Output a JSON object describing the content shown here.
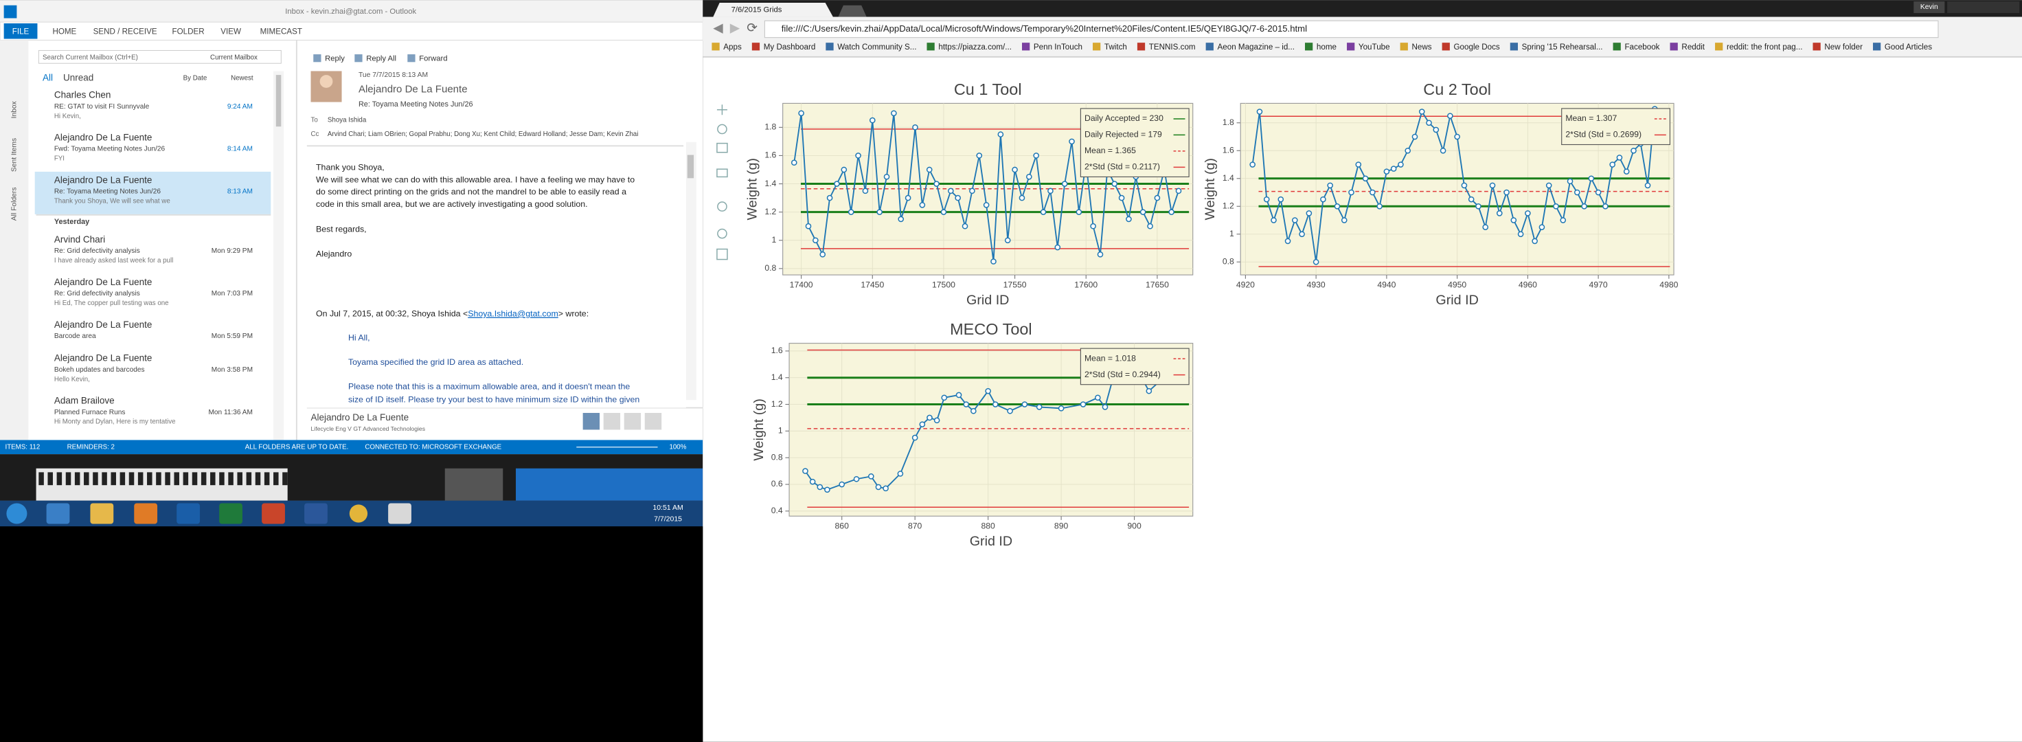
{
  "outlook": {
    "window_title": "Inbox - kevin.zhai@gtat.com - Outlook",
    "ribbon_tabs": [
      "FILE",
      "HOME",
      "SEND / RECEIVE",
      "FOLDER",
      "VIEW",
      "MIMECAST"
    ],
    "search_placeholder": "Search Current Mailbox (Ctrl+E)",
    "search_scope": "Current Mailbox",
    "filters": [
      "All",
      "Unread"
    ],
    "sort": [
      "By Date",
      "Newest"
    ],
    "side_folders": [
      "Inbox",
      "Sent Items",
      "All Folders"
    ],
    "group_label": "Yesterday",
    "messages": [
      {
        "from": "Charles Chen",
        "subject": "RE: GTAT to visit FI Sunnyvale",
        "time": "9:24 AM",
        "preview": "Hi Kevin,"
      },
      {
        "from": "Alejandro De La Fuente",
        "subject": "Fwd: Toyama Meeting Notes Jun/26",
        "time": "8:14 AM",
        "preview": "FYI"
      },
      {
        "from": "Alejandro De La Fuente",
        "subject": "Re: Toyama Meeting Notes Jun/26",
        "time": "8:13 AM",
        "preview": "Thank you Shoya,  We will see what we"
      },
      {
        "from": "Arvind Chari",
        "subject": "Re: Grid defectivity analysis",
        "time": "Mon 9:29 PM",
        "preview": "I have already asked last week for a pull"
      },
      {
        "from": "Alejandro De La Fuente",
        "subject": "Re: Grid defectivity analysis",
        "time": "Mon 7:03 PM",
        "preview": "Hi Ed,  The copper pull testing was one"
      },
      {
        "from": "Alejandro De La Fuente",
        "subject": "Barcode area",
        "time": "Mon 5:59 PM"
      },
      {
        "from": "Alejandro De La Fuente",
        "subject": "Bokeh updates and barcodes",
        "time": "Mon 3:58 PM",
        "preview": "Hello Kevin,"
      },
      {
        "from": "Adam Brailove",
        "subject": "Planned Furnace Runs",
        "time": "Mon 11:36 AM",
        "preview": "Hi Monty and Dylan,  Here is my tentative"
      }
    ],
    "reading": {
      "actions": [
        "Reply",
        "Reply All",
        "Forward"
      ],
      "date": "Tue 7/7/2015 8:13 AM",
      "sender": "Alejandro De La Fuente",
      "subject": "Re: Toyama Meeting Notes Jun/26",
      "to_label": "To",
      "to": "Shoya Ishida",
      "cc_label": "Cc",
      "cc": "Arvind Chari; Liam OBrien; Gopal Prabhu; Dong Xu; Kent Child; Edward Holland; Jesse Dam; Kevin Zhai",
      "body": [
        "Thank you Shoya,",
        "We will see what we can do with this allowable area.  I have a feeling we may have to",
        "do some direct printing on the grids and not the mandrel to be able to easily read a",
        "code in this small area, but we are actively investigating a good solution.",
        "Best regards,",
        "Alejandro"
      ],
      "quote_intro": "On Jul 7, 2015, at 00:32, Shoya Ishida <",
      "quote_email": "Shoya.Ishida@gtat.com",
      "quote_end": "> wrote:",
      "quote": [
        "Hi All,",
        "Toyama specified the grid ID area as attached.",
        "Please note that this is a maximum allowable area, and it doesn't mean the",
        "size of ID itself. Please try your best to have minimum size ID within the given"
      ],
      "people_name": "Alejandro De La Fuente",
      "people_title": "Lifecycle Eng V  GT Advanced Technologies"
    },
    "status": {
      "items": "ITEMS: 112",
      "reminders": "REMINDERS: 2",
      "sync": "ALL FOLDERS ARE UP TO DATE.",
      "connection": "CONNECTED TO: MICROSOFT EXCHANGE",
      "zoom": "100%"
    }
  },
  "taskbar": {
    "time": "10:51 AM",
    "date": "7/7/2015"
  },
  "browser": {
    "tab": "7/6/2015 Grids",
    "user": "Kevin",
    "url": "file:///C:/Users/kevin.zhai/AppData/Local/Microsoft/Windows/Temporary%20Internet%20Files/Content.IE5/QEYI8GJQ/7-6-2015.html",
    "bookmarks": [
      "Apps",
      "My Dashboard",
      "Watch Community S...",
      "https://piazza.com/...",
      "Penn InTouch",
      "Twitch",
      "TENNIS.com",
      "Aeon Magazine – id...",
      "home",
      "YouTube",
      "News",
      "Google Docs",
      "Spring '15 Rehearsal...",
      "Facebook",
      "Reddit",
      "reddit: the front pag...",
      "New folder",
      "Good Articles"
    ]
  },
  "chart_data": [
    {
      "type": "line",
      "title": "Cu 1 Tool",
      "xlabel": "Grid ID",
      "ylabel": "Weight (g)",
      "xlim": [
        17387,
        17675
      ],
      "xticks": [
        17400,
        17450,
        17500,
        17550,
        17600,
        17650
      ],
      "ylim": [
        0.755,
        1.97
      ],
      "yticks": [
        0.8,
        1,
        1.2,
        1.4,
        1.6,
        1.8
      ],
      "grid": true,
      "background": "#f7f5dc",
      "legend": "top-right",
      "x": [
        17395,
        17400,
        17405,
        17410,
        17415,
        17420,
        17425,
        17430,
        17435,
        17440,
        17445,
        17450,
        17455,
        17460,
        17465,
        17470,
        17475,
        17480,
        17485,
        17490,
        17495,
        17500,
        17505,
        17510,
        17515,
        17520,
        17525,
        17530,
        17535,
        17540,
        17545,
        17550,
        17555,
        17560,
        17565,
        17570,
        17575,
        17580,
        17585,
        17590,
        17595,
        17600,
        17605,
        17610,
        17615,
        17620,
        17625,
        17630,
        17635,
        17640,
        17645,
        17650,
        17655,
        17660,
        17665
      ],
      "series": [
        {
          "color": "#1f77b4",
          "values": [
            1.55,
            1.9,
            1.1,
            1.0,
            0.9,
            1.3,
            1.4,
            1.5,
            1.2,
            1.6,
            1.35,
            1.85,
            1.2,
            1.45,
            1.9,
            1.15,
            1.3,
            1.8,
            1.25,
            1.5,
            1.4,
            1.2,
            1.35,
            1.3,
            1.1,
            1.35,
            1.6,
            1.25,
            0.85,
            1.75,
            1.0,
            1.5,
            1.3,
            1.45,
            1.6,
            1.2,
            1.35,
            0.95,
            1.4,
            1.7,
            1.2,
            1.55,
            1.1,
            0.9,
            1.5,
            1.4,
            1.3,
            1.15,
            1.45,
            1.2,
            1.1,
            1.3,
            1.5,
            1.2,
            1.35
          ]
        }
      ],
      "hlines": [
        {
          "name": "Daily Accepted = 230",
          "value": 1.4,
          "color": "#1a7f1a",
          "dash": false
        },
        {
          "name": "Daily Rejected = 179",
          "value": 1.2,
          "color": "#1a7f1a",
          "dash": false
        },
        {
          "name": "Mean = 1.365",
          "value": 1.365,
          "color": "#e03a3a",
          "dash": true
        },
        {
          "name": "2*Std (Std = 0.2117)",
          "value": 1.788,
          "color": "#e03a3a",
          "dash": false
        },
        {
          "value": 0.941,
          "color": "#e03a3a",
          "dash": false
        }
      ]
    },
    {
      "type": "line",
      "title": "Cu 2 Tool",
      "xlabel": "Grid ID",
      "ylabel": "Weight (g)",
      "xlim": [
        4919.3,
        4980.7
      ],
      "xticks": [
        4920,
        4930,
        4940,
        4950,
        4960,
        4970,
        4980
      ],
      "ylim": [
        0.707,
        1.94
      ],
      "yticks": [
        0.8,
        1,
        1.2,
        1.4,
        1.6,
        1.8
      ],
      "grid": true,
      "background": "#f7f5dc",
      "legend": "top-right",
      "x": [
        4921,
        4922,
        4923,
        4924,
        4925,
        4926,
        4927,
        4928,
        4929,
        4930,
        4931,
        4932,
        4933,
        4934,
        4935,
        4936,
        4937,
        4938,
        4939,
        4940,
        4941,
        4942,
        4943,
        4944,
        4945,
        4946,
        4947,
        4948,
        4949,
        4950,
        4951,
        4952,
        4953,
        4954,
        4955,
        4956,
        4957,
        4958,
        4959,
        4960,
        4961,
        4962,
        4963,
        4964,
        4965,
        4966,
        4967,
        4968,
        4969,
        4970,
        4971,
        4972,
        4973,
        4974,
        4975,
        4976,
        4977,
        4978
      ],
      "series": [
        {
          "color": "#1f77b4",
          "values": [
            1.5,
            1.88,
            1.25,
            1.1,
            1.25,
            0.95,
            1.1,
            1.0,
            1.15,
            0.8,
            1.25,
            1.35,
            1.2,
            1.1,
            1.3,
            1.5,
            1.4,
            1.3,
            1.2,
            1.45,
            1.47,
            1.5,
            1.6,
            1.7,
            1.88,
            1.8,
            1.75,
            1.6,
            1.85,
            1.7,
            1.35,
            1.25,
            1.2,
            1.05,
            1.35,
            1.15,
            1.3,
            1.1,
            1.0,
            1.15,
            0.95,
            1.05,
            1.35,
            1.2,
            1.1,
            1.38,
            1.3,
            1.2,
            1.4,
            1.3,
            1.2,
            1.5,
            1.55,
            1.45,
            1.6,
            1.65,
            1.35,
            1.9
          ]
        }
      ],
      "hlines": [
        {
          "value": 1.4,
          "color": "#1a7f1a",
          "dash": false
        },
        {
          "value": 1.2,
          "color": "#1a7f1a",
          "dash": false
        },
        {
          "name": "Mean = 1.307",
          "value": 1.307,
          "color": "#e03a3a",
          "dash": true
        },
        {
          "name": "2*Std (Std = 0.2699)",
          "value": 1.847,
          "color": "#e03a3a",
          "dash": false
        },
        {
          "value": 0.767,
          "color": "#e03a3a",
          "dash": false
        }
      ]
    },
    {
      "type": "line",
      "title": "MECO Tool",
      "xlabel": "Grid ID",
      "ylabel": "Weight (g)",
      "xlim": [
        852.8,
        908
      ],
      "xticks": [
        860,
        870,
        880,
        890,
        900
      ],
      "ylim": [
        0.362,
        1.658
      ],
      "yticks": [
        0.4,
        0.6,
        0.8,
        1,
        1.2,
        1.4,
        1.6
      ],
      "grid": true,
      "background": "#f7f5dc",
      "legend": "top-right",
      "x": [
        855,
        856,
        857,
        858,
        860,
        862,
        864,
        865,
        866,
        868,
        870,
        871,
        872,
        873,
        874,
        876,
        877,
        878,
        880,
        881,
        883,
        885,
        887,
        890,
        893,
        895,
        896,
        897,
        898,
        900,
        902,
        904
      ],
      "series": [
        {
          "color": "#1f77b4",
          "values": [
            0.7,
            0.62,
            0.58,
            0.56,
            0.6,
            0.64,
            0.66,
            0.58,
            0.57,
            0.68,
            0.95,
            1.05,
            1.1,
            1.08,
            1.25,
            1.27,
            1.2,
            1.15,
            1.3,
            1.2,
            1.15,
            1.2,
            1.18,
            1.17,
            1.2,
            1.25,
            1.18,
            1.38,
            1.45,
            1.5,
            1.3,
            1.4
          ]
        }
      ],
      "hlines": [
        {
          "value": 1.4,
          "color": "#1a7f1a",
          "dash": false
        },
        {
          "value": 1.2,
          "color": "#1a7f1a",
          "dash": false
        },
        {
          "name": "Mean = 1.018",
          "value": 1.018,
          "color": "#e03a3a",
          "dash": true
        },
        {
          "name": "2*Std (Std = 0.2944)",
          "value": 1.607,
          "color": "#e03a3a",
          "dash": false
        },
        {
          "value": 0.429,
          "color": "#e03a3a",
          "dash": false
        }
      ]
    }
  ]
}
